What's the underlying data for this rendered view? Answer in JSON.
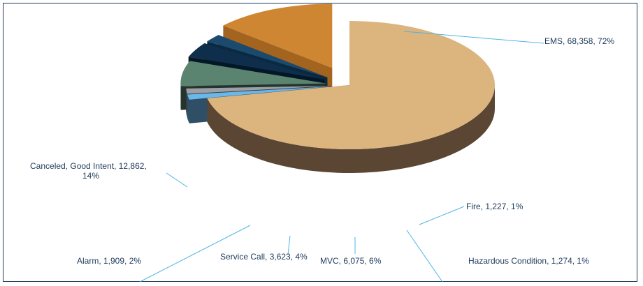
{
  "chart_data": {
    "type": "pie",
    "style": "3d-exploded",
    "title": "",
    "slices": [
      {
        "name": "EMS",
        "value": 68358,
        "percent": 72,
        "label": "EMS, 68,358, 72%",
        "color": "#dcb47e",
        "side_color": "#5b4633"
      },
      {
        "name": "Fire",
        "value": 1227,
        "percent": 1,
        "label": "Fire, 1,227, 1%",
        "color": "#6ab7ea",
        "side_color": "#2e4f66"
      },
      {
        "name": "Hazardous Condition",
        "value": 1274,
        "percent": 1,
        "label": "Hazardous Condition, 1,274, 1%",
        "color": "#9aa0a6",
        "side_color": "#3b3f45"
      },
      {
        "name": "MVC",
        "value": 6075,
        "percent": 6,
        "label": "MVC, 6,075, 6%",
        "color": "#5a8470",
        "side_color": "#24342c"
      },
      {
        "name": "Service Call",
        "value": 3623,
        "percent": 4,
        "label": "Service Call, 3,623, 4%",
        "color": "#0f2e4c",
        "side_color": "#031726"
      },
      {
        "name": "Alarm",
        "value": 1909,
        "percent": 2,
        "label": "Alarm, 1,909, 2%",
        "color": "#1c4a6e",
        "side_color": "#0a2a40"
      },
      {
        "name": "Canceled, Good Intent",
        "value": 12862,
        "percent": 14,
        "label_line1": "Canceled, Good Intent, 12,862,",
        "label_line2": "14%",
        "color": "#cf8632",
        "side_color": "#a3641f"
      }
    ]
  }
}
